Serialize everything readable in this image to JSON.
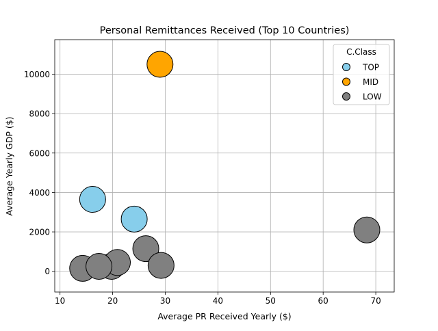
{
  "chart_data": {
    "type": "scatter",
    "title": "Personal Remittances Received (Top 10 Countries)",
    "xlabel": "Average PR Received Yearly  ($)",
    "ylabel": "Average Yearly GDP ($)",
    "xlim": [
      9,
      73.5
    ],
    "ylim": [
      -1050,
      11750
    ],
    "xticks": [
      10,
      20,
      30,
      40,
      50,
      60,
      70
    ],
    "yticks": [
      0,
      2000,
      4000,
      6000,
      8000,
      10000
    ],
    "grid": true,
    "legend": {
      "title": "C.Class",
      "placement": "top-right"
    },
    "series": [
      {
        "name": "TOP",
        "color": "#87ceeb",
        "points": [
          {
            "x": 16.2,
            "y": 3650
          },
          {
            "x": 24.1,
            "y": 2650
          }
        ]
      },
      {
        "name": "MID",
        "color": "#ffa500",
        "points": [
          {
            "x": 29.0,
            "y": 10500
          }
        ]
      },
      {
        "name": "LOW",
        "color": "#808080",
        "points": [
          {
            "x": 19.8,
            "y": 250
          },
          {
            "x": 26.3,
            "y": 1150
          },
          {
            "x": 68.3,
            "y": 2100
          },
          {
            "x": 14.3,
            "y": 150
          },
          {
            "x": 20.9,
            "y": 450
          },
          {
            "x": 29.2,
            "y": 300
          },
          {
            "x": 17.4,
            "y": 250
          }
        ]
      }
    ]
  }
}
